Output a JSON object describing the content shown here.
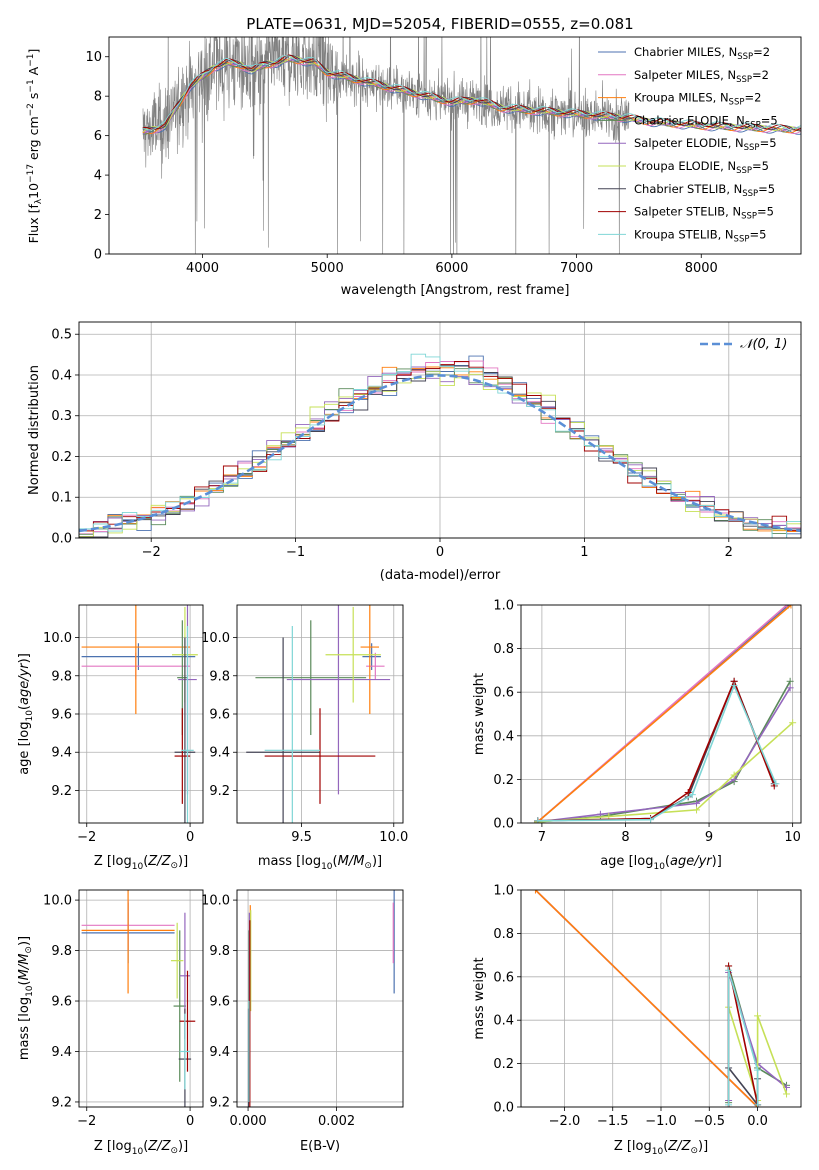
{
  "figure_title": "PLATE=0631, MJD=52054, FIBERID=0555, z=0.081",
  "colors": {
    "data": "#808080",
    "chabrier_miles": "#4c72b0",
    "salpeter_miles": "#e377c2",
    "kroupa_miles": "#ff7f0e",
    "chabrier_elodie": "#5a8a5a",
    "salpeter_elodie": "#9467bd",
    "kroupa_elodie": "#c6e057",
    "chabrier_stelib": "#444455",
    "salpeter_stelib": "#a00000",
    "kroupa_stelib": "#7fd6d6",
    "gaussian": "#5b8fd6",
    "grid": "#b0b0b0"
  },
  "chart_data": [
    {
      "id": "spectrum",
      "type": "line",
      "title": "PLATE=0631, MJD=52054, FIBERID=0555, z=0.081",
      "xlabel": "wavelength [Angstrom, rest frame]",
      "ylabel": "Flux [f_λ 10^-17 erg cm^-2 s^-1 A^-1]",
      "xlim": [
        3250,
        8800
      ],
      "ylim": [
        0,
        11
      ],
      "xticks": [
        4000,
        5000,
        6000,
        7000,
        8000
      ],
      "yticks": [
        0,
        2,
        4,
        6,
        8,
        10
      ],
      "grid": false,
      "legend_position": "top-right",
      "data_range": [
        3520,
        7420
      ],
      "model_range": [
        3520,
        8800
      ],
      "model_flux": {
        "x": [
          3520,
          3600,
          3700,
          3800,
          3900,
          4000,
          4100,
          4200,
          4300,
          4400,
          4500,
          4600,
          4700,
          4800,
          4900,
          5000,
          5200,
          5400,
          5600,
          5800,
          6000,
          6200,
          6400,
          6600,
          6800,
          7000,
          7200,
          7400,
          7600,
          7800,
          8000,
          8200,
          8400,
          8600,
          8800
        ],
        "y": [
          6.2,
          6.3,
          6.5,
          7.5,
          8.5,
          9.0,
          9.5,
          9.7,
          9.6,
          9.3,
          9.6,
          9.7,
          9.9,
          9.8,
          9.7,
          9.2,
          8.9,
          8.6,
          8.3,
          8.0,
          7.7,
          7.8,
          7.4,
          7.3,
          7.2,
          7.1,
          7.0,
          6.9,
          6.7,
          6.6,
          6.5,
          6.45,
          6.4,
          6.35,
          6.3
        ]
      },
      "legend": [
        {
          "label": "Chabrier MILES, N",
          "sub": "SSP",
          "eq": "=2"
        },
        {
          "label": "Salpeter MILES, N",
          "sub": "SSP",
          "eq": "=2"
        },
        {
          "label": "Kroupa MILES, N",
          "sub": "SSP",
          "eq": "=2"
        },
        {
          "label": "Chabrier ELODIE, N",
          "sub": "SSP",
          "eq": "=5"
        },
        {
          "label": "Salpeter ELODIE, N",
          "sub": "SSP",
          "eq": "=5"
        },
        {
          "label": "Kroupa ELODIE, N",
          "sub": "SSP",
          "eq": "=5"
        },
        {
          "label": "Chabrier STELIB, N",
          "sub": "SSP",
          "eq": "=5"
        },
        {
          "label": "Salpeter STELIB, N",
          "sub": "SSP",
          "eq": "=5"
        },
        {
          "label": "Kroupa STELIB, N",
          "sub": "SSP",
          "eq": "=5"
        }
      ]
    },
    {
      "id": "residuals",
      "type": "step",
      "xlabel": "(data-model)/error",
      "ylabel": "Normed distribution",
      "xlim": [
        -2.5,
        2.5
      ],
      "ylim": [
        0,
        0.53
      ],
      "xticks": [
        -2,
        -1,
        0,
        1,
        2
      ],
      "yticks": [
        0.0,
        0.1,
        0.2,
        0.3,
        0.4,
        0.5
      ],
      "grid": true,
      "legend_position": "top-right",
      "gaussian_label": "N(0,1)",
      "bin_width": 0.1
    },
    {
      "id": "age_vs_z",
      "type": "errorbar",
      "xlabel": "Z [log10(Z/Z☉)]",
      "ylabel": "age [log10(age/yr)]",
      "xlim": [
        -2.15,
        0.25
      ],
      "ylim": [
        9.03,
        10.17
      ],
      "xticks": [
        -2,
        0
      ],
      "yticks": [
        9.2,
        9.4,
        9.6,
        9.8,
        10.0
      ],
      "grid": true,
      "points": [
        {
          "s": "chabrier_miles",
          "x": -1.0,
          "xe": 1.1,
          "y": 9.9,
          "ye": 0.07
        },
        {
          "s": "salpeter_miles",
          "x": -1.05,
          "xe": 1.05,
          "y": 9.85,
          "ye": 0.07
        },
        {
          "s": "kroupa_miles",
          "x": -1.05,
          "xe": 1.05,
          "y": 9.95,
          "ye": 0.35
        },
        {
          "s": "chabrier_elodie",
          "x": -0.15,
          "xe": 0.1,
          "y": 9.79,
          "ye": 0.3
        },
        {
          "s": "salpeter_elodie",
          "x": -0.05,
          "xe": 0.18,
          "y": 9.78,
          "ye": 0.6
        },
        {
          "s": "kroupa_elodie",
          "x": -0.1,
          "xe": 0.25,
          "y": 9.91,
          "ye": 0.25
        },
        {
          "s": "chabrier_stelib",
          "x": -0.1,
          "xe": 0.2,
          "y": 9.4,
          "ye": 0.6
        },
        {
          "s": "salpeter_stelib",
          "x": -0.15,
          "xe": 0.15,
          "y": 9.38,
          "ye": 0.25
        },
        {
          "s": "kroupa_stelib",
          "x": -0.05,
          "xe": 0.12,
          "y": 9.41,
          "ye": 0.65
        }
      ]
    },
    {
      "id": "age_vs_mass",
      "type": "errorbar",
      "xlabel": "mass [log10(M/M☉)]",
      "ylabel": "",
      "xlim": [
        9.15,
        10.05
      ],
      "ylim": [
        9.03,
        10.17
      ],
      "xticks": [
        9.5,
        10.0
      ],
      "yticks": [
        9.2,
        9.4,
        9.6,
        9.8,
        10.0
      ],
      "grid": true,
      "points": [
        {
          "s": "chabrier_miles",
          "x": 9.88,
          "xe": 0.05,
          "y": 9.9,
          "ye": 0.07
        },
        {
          "s": "salpeter_miles",
          "x": 9.9,
          "xe": 0.05,
          "y": 9.85,
          "ye": 0.07
        },
        {
          "s": "kroupa_miles",
          "x": 9.87,
          "xe": 0.05,
          "y": 9.95,
          "ye": 0.35
        },
        {
          "s": "chabrier_elodie",
          "x": 9.55,
          "xe": 0.3,
          "y": 9.79,
          "ye": 0.3
        },
        {
          "s": "salpeter_elodie",
          "x": 9.7,
          "xe": 0.28,
          "y": 9.78,
          "ye": 0.6
        },
        {
          "s": "kroupa_elodie",
          "x": 9.78,
          "xe": 0.15,
          "y": 9.91,
          "ye": 0.25
        },
        {
          "s": "chabrier_stelib",
          "x": 9.4,
          "xe": 0.2,
          "y": 9.4,
          "ye": 0.6
        },
        {
          "s": "salpeter_stelib",
          "x": 9.6,
          "xe": 0.3,
          "y": 9.38,
          "ye": 0.25
        },
        {
          "s": "kroupa_stelib",
          "x": 9.45,
          "xe": 0.15,
          "y": 9.41,
          "ye": 0.65
        }
      ]
    },
    {
      "id": "weight_vs_age",
      "type": "line",
      "xlabel": "age [log10(age/yr)]",
      "ylabel": "mass weight",
      "xlim": [
        6.75,
        10.1
      ],
      "ylim": [
        0,
        1.0
      ],
      "xticks": [
        7,
        8,
        9,
        10
      ],
      "yticks": [
        0.0,
        0.2,
        0.4,
        0.6,
        0.8,
        1.0
      ],
      "grid": true,
      "series": [
        {
          "s": "chabrier_miles",
          "x": [
            6.95,
            9.95
          ],
          "y": [
            0.005,
            1.0
          ]
        },
        {
          "s": "salpeter_miles",
          "x": [
            6.95,
            9.93
          ],
          "y": [
            0.005,
            1.0
          ]
        },
        {
          "s": "kroupa_miles",
          "x": [
            6.95,
            9.98
          ],
          "y": [
            0.005,
            1.0
          ]
        },
        {
          "s": "chabrier_elodie",
          "x": [
            6.95,
            7.7,
            8.85,
            9.3,
            9.97
          ],
          "y": [
            0.005,
            0.03,
            0.1,
            0.19,
            0.65
          ]
        },
        {
          "s": "salpeter_elodie",
          "x": [
            6.95,
            7.7,
            8.85,
            9.3,
            9.97
          ],
          "y": [
            0.005,
            0.04,
            0.09,
            0.2,
            0.62
          ]
        },
        {
          "s": "kroupa_elodie",
          "x": [
            6.95,
            7.8,
            8.85,
            9.3,
            10.0
          ],
          "y": [
            0.005,
            0.03,
            0.06,
            0.22,
            0.46
          ]
        },
        {
          "s": "chabrier_stelib",
          "x": [
            6.95,
            8.3,
            8.75,
            9.3,
            9.78
          ],
          "y": [
            0.01,
            0.02,
            0.12,
            0.65,
            0.18
          ]
        },
        {
          "s": "salpeter_stelib",
          "x": [
            6.95,
            8.3,
            8.75,
            9.3,
            9.78
          ],
          "y": [
            0.01,
            0.02,
            0.14,
            0.65,
            0.17
          ]
        },
        {
          "s": "kroupa_stelib",
          "x": [
            6.95,
            8.3,
            8.8,
            9.3,
            9.8
          ],
          "y": [
            0.01,
            0.015,
            0.13,
            0.63,
            0.18
          ]
        }
      ]
    },
    {
      "id": "mass_vs_z",
      "type": "errorbar",
      "xlabel": "Z [log10(Z/Z☉)]",
      "ylabel": "mass [log10(M/M☉)]",
      "xlim": [
        -2.15,
        0.25
      ],
      "ylim": [
        9.18,
        10.04
      ],
      "xticks": [
        -2,
        0
      ],
      "yticks": [
        9.2,
        9.4,
        9.6,
        9.8,
        10.0
      ],
      "grid": true,
      "points": [
        {
          "s": "chabrier_miles",
          "x": -1.2,
          "xe": 0.9,
          "y": 9.87,
          "ye": 0.12
        },
        {
          "s": "salpeter_miles",
          "x": -1.2,
          "xe": 0.9,
          "y": 9.9,
          "ye": 0.1
        },
        {
          "s": "kroupa_miles",
          "x": -1.2,
          "xe": 0.9,
          "y": 9.88,
          "ye": 0.25
        },
        {
          "s": "chabrier_elodie",
          "x": -0.2,
          "xe": 0.12,
          "y": 9.58,
          "ye": 0.3
        },
        {
          "s": "salpeter_elodie",
          "x": -0.1,
          "xe": 0.1,
          "y": 9.7,
          "ye": 0.25
        },
        {
          "s": "kroupa_elodie",
          "x": -0.25,
          "xe": 0.12,
          "y": 9.76,
          "ye": 0.15
        },
        {
          "s": "chabrier_stelib",
          "x": -0.1,
          "xe": 0.12,
          "y": 9.37,
          "ye": 0.2
        },
        {
          "s": "salpeter_stelib",
          "x": -0.05,
          "xe": 0.15,
          "y": 9.52,
          "ye": 0.2
        },
        {
          "s": "kroupa_stelib",
          "x": -0.1,
          "xe": 0.1,
          "y": 9.4,
          "ye": 0.15
        }
      ]
    },
    {
      "id": "mass_vs_ebv",
      "type": "errorbar",
      "xlabel": "E(B-V)",
      "ylabel": "",
      "xlim": [
        -0.00025,
        0.0035
      ],
      "ylim": [
        9.18,
        10.04
      ],
      "xticks": [
        0.0,
        0.002
      ],
      "xtick_labels": [
        "0.000",
        "0.002"
      ],
      "yticks": [
        9.2,
        9.4,
        9.6,
        9.8,
        10.0
      ],
      "grid": true,
      "points": [
        {
          "s": "chabrier_miles",
          "x": 0.0033,
          "xe": 0.0,
          "y": 9.85,
          "ye": 0.22
        },
        {
          "s": "salpeter_miles",
          "x": 0.00328,
          "xe": 0.0,
          "y": 9.87,
          "ye": 0.12
        },
        {
          "s": "kroupa_miles",
          "x": 5e-05,
          "xe": 0.0,
          "y": 9.88,
          "ye": 0.1
        },
        {
          "s": "chabrier_elodie",
          "x": 2e-05,
          "xe": 0.0,
          "y": 9.58,
          "ye": 0.3
        },
        {
          "s": "salpeter_elodie",
          "x": 3e-05,
          "xe": 0.0,
          "y": 9.7,
          "ye": 0.25
        },
        {
          "s": "kroupa_elodie",
          "x": 6e-05,
          "xe": 0.0,
          "y": 9.76,
          "ye": 0.2
        },
        {
          "s": "chabrier_stelib",
          "x": 1e-05,
          "xe": 0.0,
          "y": 9.37,
          "ye": 0.2
        },
        {
          "s": "salpeter_stelib",
          "x": 4e-05,
          "xe": 0.0,
          "y": 9.52,
          "ye": 0.4
        },
        {
          "s": "kroupa_stelib",
          "x": 2e-05,
          "xe": 0.0,
          "y": 9.4,
          "ye": 0.2
        }
      ]
    },
    {
      "id": "weight_vs_z",
      "type": "line",
      "xlabel": "Z [log10(Z/Z☉)]",
      "ylabel": "mass weight",
      "xlim": [
        -2.45,
        0.45
      ],
      "ylim": [
        0,
        1.0
      ],
      "xticks": [
        -2.0,
        -1.5,
        -1.0,
        -0.5,
        0.0
      ],
      "xtick_labels": [
        "−2.0",
        "−1.5",
        "−1.0",
        "−0.5",
        "0.0"
      ],
      "yticks": [
        0.0,
        0.2,
        0.4,
        0.6,
        0.8,
        1.0
      ],
      "grid": true,
      "series": [
        {
          "s": "chabrier_miles",
          "x": [
            -2.3,
            0.0
          ],
          "y": [
            1.0,
            0.0
          ]
        },
        {
          "s": "salpeter_miles",
          "x": [
            -2.3,
            0.0
          ],
          "y": [
            1.0,
            0.0
          ]
        },
        {
          "s": "kroupa_miles",
          "x": [
            -2.3,
            0.0
          ],
          "y": [
            1.0,
            0.0
          ]
        },
        {
          "s": "chabrier_elodie",
          "x": [
            -0.3,
            -0.3,
            0.0,
            0.3
          ],
          "y": [
            0.02,
            0.65,
            0.18,
            0.1
          ]
        },
        {
          "s": "salpeter_elodie",
          "x": [
            -0.3,
            -0.3,
            0.0,
            0.3
          ],
          "y": [
            0.03,
            0.62,
            0.2,
            0.09
          ]
        },
        {
          "s": "kroupa_elodie",
          "x": [
            -0.3,
            0.0,
            0.0,
            0.3
          ],
          "y": [
            0.46,
            0.03,
            0.42,
            0.06
          ]
        },
        {
          "s": "chabrier_stelib",
          "x": [
            -0.3,
            0.0,
            0.0
          ],
          "y": [
            0.18,
            0.01,
            0.13
          ]
        },
        {
          "s": "salpeter_stelib",
          "x": [
            -0.3,
            -0.3,
            0.0
          ],
          "y": [
            0.0,
            0.65,
            0.01
          ]
        },
        {
          "s": "kroupa_stelib",
          "x": [
            -0.3,
            -0.3,
            0.0,
            0.0
          ],
          "y": [
            0.01,
            0.63,
            0.17,
            0.01
          ]
        }
      ]
    }
  ]
}
